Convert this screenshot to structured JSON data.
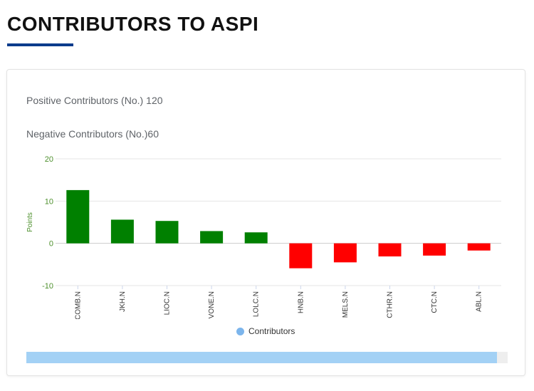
{
  "page": {
    "title": "CONTRIBUTORS TO ASPI"
  },
  "stats": {
    "positive_label": "Positive Contributors (No.)",
    "positive_value": "120",
    "negative_label": "Negative Contributors (No.)",
    "negative_value": "60"
  },
  "colors": {
    "accent": "#0b3c8c",
    "positive_bar": "#008000",
    "negative_bar": "#ff0000",
    "legend_marker": "#7cb5ec",
    "scrollbar": "#a3d1f5"
  },
  "chart_data": {
    "type": "bar",
    "title": "",
    "xlabel": "",
    "ylabel": "Points",
    "ylim": [
      -10,
      20
    ],
    "yticks": [
      20,
      10,
      0,
      -10
    ],
    "categories": [
      "COMB.N",
      "JKH.N",
      "LIOC.N",
      "VONE.N",
      "LOLC.N",
      "HNB.N",
      "MELS.N",
      "CTHR.N",
      "CTC.N",
      "ABL.N"
    ],
    "series": [
      {
        "name": "Contributors",
        "values": [
          12.6,
          5.6,
          5.3,
          2.9,
          2.6,
          -5.9,
          -4.5,
          -3.1,
          -2.9,
          -1.7
        ]
      }
    ],
    "legend": "bottom-center",
    "grid": true
  }
}
